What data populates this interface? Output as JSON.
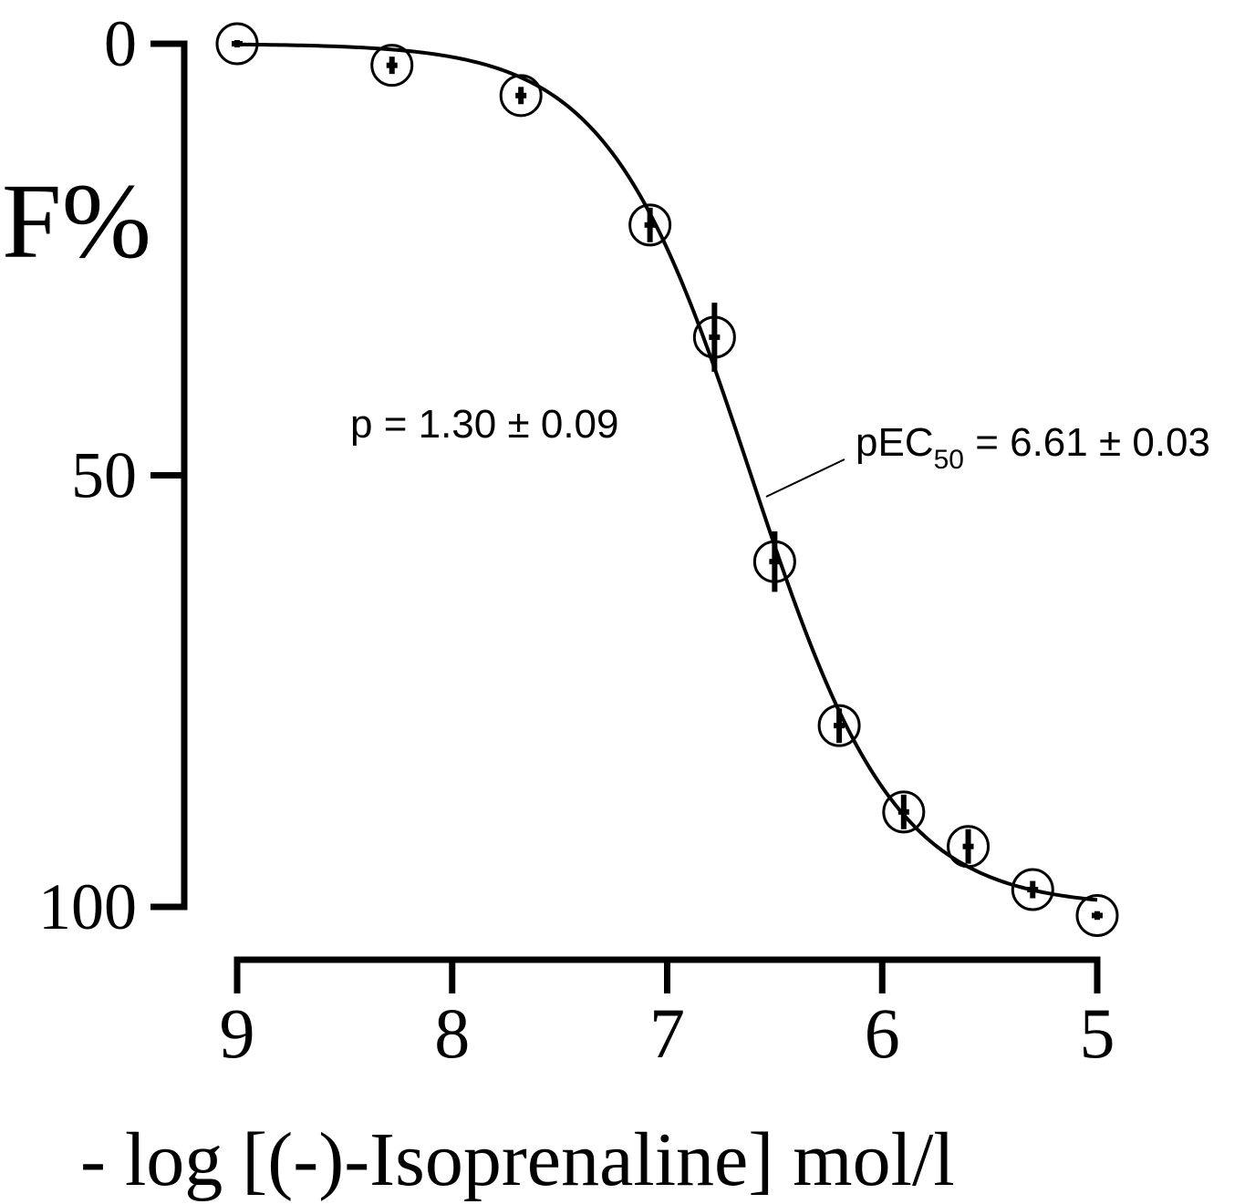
{
  "chart_data": {
    "type": "scatter",
    "ylabel": "F%",
    "xlabel": "- log [(-)-Isoprenaline] mol/l",
    "x_ticks": [
      "9",
      "8",
      "7",
      "6",
      "5"
    ],
    "y_ticks": [
      "0",
      "50",
      "100"
    ],
    "xlim": [
      9,
      5
    ],
    "ylim": [
      0,
      100
    ],
    "y_inverted": true,
    "grid": false,
    "series": [
      {
        "x": [
          9.0,
          8.28,
          7.68,
          7.08,
          6.78,
          6.5,
          6.2,
          5.9,
          5.6,
          5.3,
          5.0
        ],
        "y": [
          0,
          2.5,
          6,
          21,
          34,
          60,
          79,
          89,
          93,
          98,
          101
        ],
        "error": [
          0,
          1,
          1,
          2,
          4,
          3.5,
          2,
          2,
          2,
          1,
          0.5
        ]
      }
    ],
    "fit": {
      "type": "hill",
      "pEC50": 6.61,
      "slope": 1.3
    },
    "annotations": [
      {
        "text": "p = 1.30 ± 0.09"
      },
      {
        "text_main": "pEC",
        "text_sub": "50",
        "text_rest": " = 6.61 ± 0.03"
      }
    ]
  }
}
